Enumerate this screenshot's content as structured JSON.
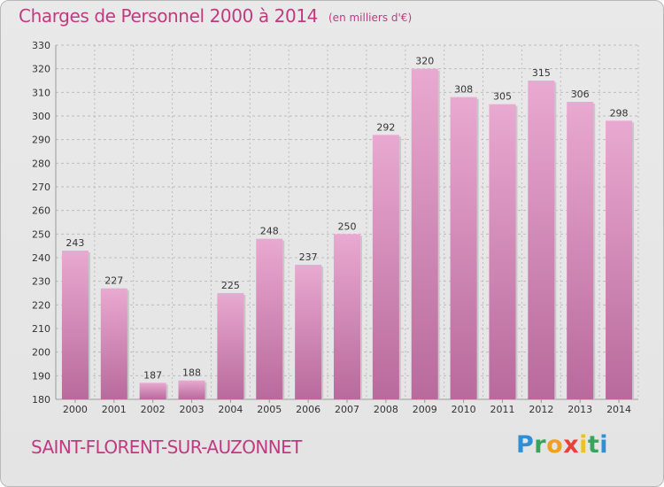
{
  "header": {
    "title": "Charges de Personnel 2000 à 2014",
    "subtitle": "(en milliers d'€)"
  },
  "footer": {
    "commune": "SAINT-FLORENT-SUR-AUZONNET",
    "logo_text": "Proxiti",
    "logo_letters": [
      "P",
      "r",
      "o",
      "x",
      "i",
      "t",
      "i"
    ],
    "logo_colors": [
      "#2e8fd6",
      "#3aa35b",
      "#f0a020",
      "#e8403a",
      "#f0c020",
      "#3aa35b",
      "#2e8fd6"
    ]
  },
  "colors": {
    "bar_top": "#e9a9d0",
    "bar_bottom": "#b86a9c",
    "accent": "#c03a82",
    "grid": "#bdbdbd"
  },
  "chart_data": {
    "type": "bar",
    "title": "Charges de Personnel 2000 à 2014",
    "subtitle": "(en milliers d'€)",
    "categories": [
      "2000",
      "2001",
      "2002",
      "2003",
      "2004",
      "2005",
      "2006",
      "2007",
      "2008",
      "2009",
      "2010",
      "2011",
      "2012",
      "2013",
      "2014"
    ],
    "values": [
      243,
      227,
      187,
      188,
      225,
      248,
      237,
      250,
      292,
      320,
      308,
      305,
      315,
      306,
      298
    ],
    "ylim": [
      180,
      330
    ],
    "yticks": [
      180,
      190,
      200,
      210,
      220,
      230,
      240,
      250,
      260,
      270,
      280,
      290,
      300,
      310,
      320,
      330
    ],
    "xlabel": "",
    "ylabel": "",
    "grid": true,
    "legend": "none"
  }
}
